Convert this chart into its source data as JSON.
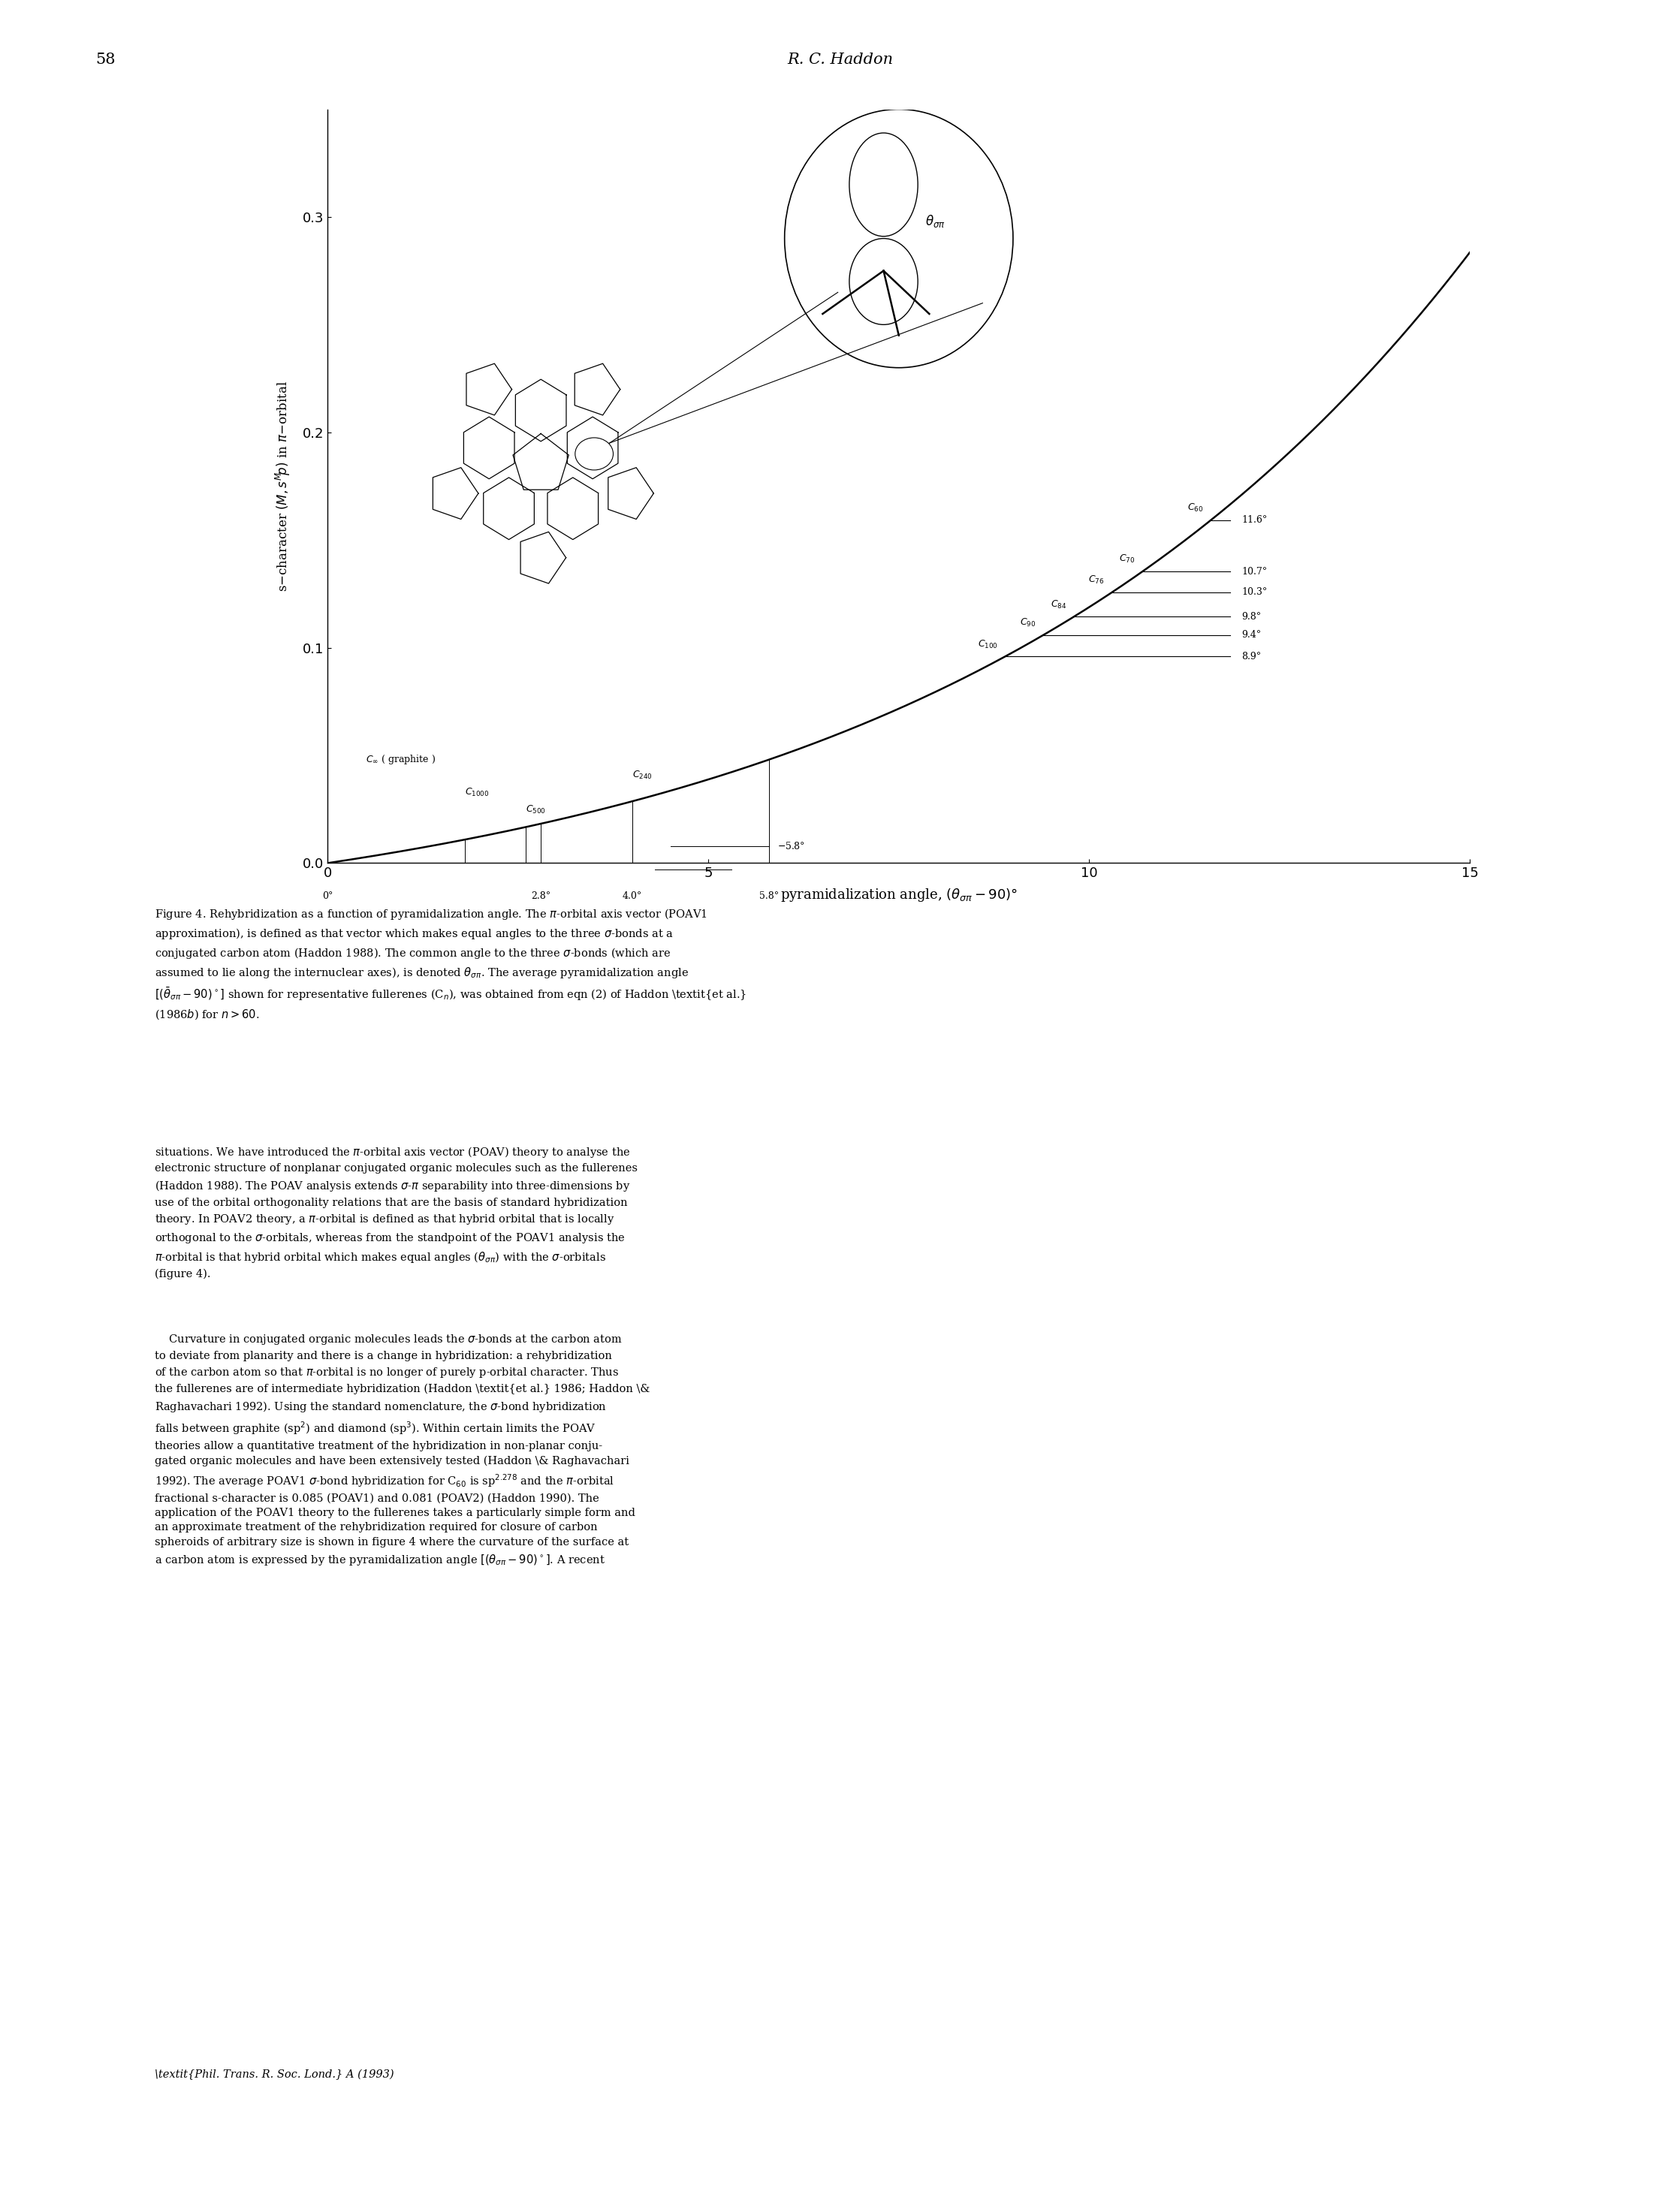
{
  "page_number": "58",
  "page_header": "R. C. Haddon",
  "background": "#ffffff",
  "curve_A": 0.03664,
  "curve_B": 0.14454,
  "xlim": [
    0,
    15
  ],
  "ylim": [
    0,
    0.35
  ],
  "xticks": [
    0,
    5,
    10,
    15
  ],
  "yticks": [
    0,
    0.1,
    0.2,
    0.3
  ],
  "right_fullerenes": [
    {
      "x": 8.9,
      "sub": "100",
      "angle": "8.9°"
    },
    {
      "x": 9.4,
      "sub": "90",
      "angle": "9.4°"
    },
    {
      "x": 9.8,
      "sub": "84",
      "angle": "9.8°"
    },
    {
      "x": 10.3,
      "sub": "76",
      "angle": "10.3°"
    },
    {
      "x": 10.7,
      "sub": "70",
      "angle": "10.7°"
    },
    {
      "x": 11.6,
      "sub": "60",
      "angle": "11.6°"
    }
  ],
  "footnote": "Phil. Trans. R. Soc. Lond. A (1993)"
}
